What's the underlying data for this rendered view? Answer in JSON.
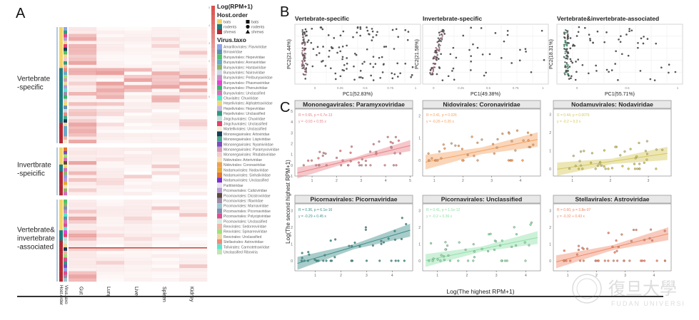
{
  "panels": {
    "a": "A",
    "b": "B",
    "c": "C"
  },
  "chart_data": [
    {
      "type": "heatmap",
      "id": "A",
      "title": "",
      "columns": [
        "Gut",
        "Lung",
        "Liver",
        "Spleen",
        "Kidney"
      ],
      "annotation_columns": [
        "Host.order",
        "Virus.taxo"
      ],
      "row_groups": [
        {
          "label_lines": [
            "Vertebrate",
            "-specific"
          ],
          "rows": 34
        },
        {
          "label_lines": [
            "Invertbrate",
            "-speicific"
          ],
          "rows": 14
        },
        {
          "label_lines": [
            "Vertebrate&",
            "invertebrate",
            "-associated"
          ],
          "rows": 24
        }
      ],
      "color_scale": {
        "title": "Log(RPM+1)",
        "ticks": [
          0,
          1,
          2,
          3,
          4,
          5
        ],
        "low": "#ffffff",
        "high": "#d9534f"
      },
      "legend_host_order": {
        "title": "Host.order",
        "items": [
          {
            "name": "bats",
            "color": "#f2d46b",
            "shape": "square"
          },
          {
            "name": "rodents",
            "color": "#1f7a80",
            "shape": "circle"
          },
          {
            "name": "shrews",
            "color": "#b22b35",
            "shape": "triangle"
          }
        ]
      },
      "legend_virus_taxo": {
        "title": "Virus.taxo",
        "items": [
          {
            "name": "Amarillovirales: Flaviviridae",
            "color": "#8fa4e6"
          },
          {
            "name": "Birnaviridae",
            "color": "#5f8fb0"
          },
          {
            "name": "Bunyavirales: Hepeviridae",
            "color": "#4fc36a"
          },
          {
            "name": "Bunyavirales: Arenaviridae",
            "color": "#6aa9c9"
          },
          {
            "name": "Bunyavirales: Hantaviridae",
            "color": "#8fb56a"
          },
          {
            "name": "Bunyavirales: Nairoviridae",
            "color": "#cfd7e6"
          },
          {
            "name": "Bunyavirales: Peribunyaviridae",
            "color": "#c58fc4"
          },
          {
            "name": "Bunyavirales: Phasmaviridae",
            "color": "#e83fd6"
          },
          {
            "name": "Bunyavirales: Phenuiviridae",
            "color": "#3ab56a"
          },
          {
            "name": "Bunyavirales: Unclassified",
            "color": "#d46fb8"
          },
          {
            "name": "Chuviales: Chuviridae",
            "color": "#52e6c9"
          },
          {
            "name": "Hepelivirales: Alphatetraviridae",
            "color": "#f1d873"
          },
          {
            "name": "Hepelivirales: Hepeviridae",
            "color": "#c9b6e0"
          },
          {
            "name": "Hepelivirales: Unclassified",
            "color": "#2e9b7c"
          },
          {
            "name": "Jingchuvirales: Chuviridae",
            "color": "#bfe0d8"
          },
          {
            "name": "Jingchuvirales: Unclassified",
            "color": "#e6416f"
          },
          {
            "name": "Martellivirales: Unclassified",
            "color": "#f6ecd2"
          },
          {
            "name": "Mononegavirales: Artoviridae",
            "color": "#163d57"
          },
          {
            "name": "Mononegavirales: Lispiviridae",
            "color": "#46a88c"
          },
          {
            "name": "Mononegavirales: Nyamiviridae",
            "color": "#7c4ac2"
          },
          {
            "name": "Mononegavirales: Paramyxoviridae",
            "color": "#d69bb7"
          },
          {
            "name": "Mononegavirales: Rhabdoviridae",
            "color": "#f2c9cf"
          },
          {
            "name": "Nidovirales: Arteriviridae",
            "color": "#f5e2b8"
          },
          {
            "name": "Nidovirales: Coronaviridae",
            "color": "#f0a04b"
          },
          {
            "name": "Nodamuvirales: Nodaviridae",
            "color": "#e6a93a"
          },
          {
            "name": "Nodamuvirales: Sinhaliviridae",
            "color": "#e5762d"
          },
          {
            "name": "Nodamuvirales: Unclassified",
            "color": "#7b2fd0"
          },
          {
            "name": "Partitiviridae",
            "color": "#e9e2f2"
          },
          {
            "name": "Picornavirales: Caliciviridae",
            "color": "#b99ad9"
          },
          {
            "name": "Picornavirales: Dicistroviridae",
            "color": "#5b4a3a"
          },
          {
            "name": "Picornavirales: Iflaviridae",
            "color": "#a08aa6"
          },
          {
            "name": "Picornavirales: Marnaviridae",
            "color": "#9bc7cf"
          },
          {
            "name": "Picornavirales: Picornaviridae",
            "color": "#7f8fb0"
          },
          {
            "name": "Picornavirales: Polycipiviridae",
            "color": "#e04b8c"
          },
          {
            "name": "Picornavirales: Unclassified",
            "color": "#cfeee0"
          },
          {
            "name": "Reovirales: Sedoreoviridae",
            "color": "#f0b6a8"
          },
          {
            "name": "Reovirales: Spinareoviridae",
            "color": "#9fe07a"
          },
          {
            "name": "Reovirales: Unclassified",
            "color": "#eed9a0"
          },
          {
            "name": "Stellavirales: Astroviridae",
            "color": "#f08a7a"
          },
          {
            "name": "Tolivirales: Carmotetraviridae",
            "color": "#5de6cf"
          },
          {
            "name": "Unclassified Riboviria",
            "color": "#bfe6b0"
          }
        ]
      }
    },
    {
      "type": "scatter",
      "id": "B1",
      "title": "Vertebrate-specific",
      "xlabel": "PC1(52.83%)",
      "ylabel": "PC2(21.44%)",
      "xlim": [
        -0.2,
        1.05
      ],
      "ylim": [
        -0.4,
        0.35
      ],
      "xticks": [
        0,
        0.25,
        0.5,
        0.75,
        1.0
      ],
      "grid": true
    },
    {
      "type": "scatter",
      "id": "B2",
      "title": "Invertebrate-specific",
      "xlabel": "PC1(49.38%)",
      "ylabel": "PC2(21.58%)",
      "xlim": [
        -0.1,
        1.05
      ],
      "ylim": [
        -0.5,
        0.35
      ],
      "xticks": [
        0.0,
        0.25,
        0.5,
        0.75,
        1.0
      ],
      "grid": true
    },
    {
      "type": "scatter",
      "id": "B3",
      "title": "Vertebrate&invertebrate-associated",
      "xlabel": "PC1(55.71%)",
      "ylabel": "PC2(18.31%)",
      "xlim": [
        -0.2,
        1.05
      ],
      "ylim": [
        -0.5,
        0.35
      ],
      "xticks": [
        0,
        0.5,
        1.0
      ],
      "grid": true
    },
    {
      "type": "scatter",
      "id": "C-facets",
      "xlabel": "Log(The highest RPM+1)",
      "ylabel": "Log(The second highest RPM+1)",
      "facets": [
        {
          "title": "Mononegavirales: Paramyxoviridae",
          "color": "#e8838a",
          "stat": "R = 0.65, p = 6.7e-13",
          "eq": "y = -0.93 + 0.55 x",
          "xlim": [
            0.3,
            5.1
          ],
          "ylim": [
            -1,
            5.2
          ],
          "xticks": [
            1,
            2,
            3,
            4,
            5
          ],
          "yticks": [
            -1,
            0,
            1,
            2,
            3,
            4,
            5
          ],
          "slope": 0.55,
          "intercept": -0.93
        },
        {
          "title": "Nidovirales: Coronaviridae",
          "color": "#f4a261",
          "stat": "R = 0.41, p = 0.026",
          "eq": "y = -0.26 + 0.26 x",
          "xlim": [
            0.6,
            4.7
          ],
          "ylim": [
            -0.7,
            2.3
          ],
          "xticks": [
            1,
            2,
            3,
            4
          ],
          "yticks": [
            0,
            1,
            2
          ],
          "slope": 0.26,
          "intercept": -0.26
        },
        {
          "title": "Nodamuvirales: Nodaviridae",
          "color": "#d4c85a",
          "stat": "R = 0.44, p = 0.0076",
          "eq": "y = -0.2 + 0.3 x",
          "xlim": [
            0.5,
            3.6
          ],
          "ylim": [
            -0.4,
            3.3
          ],
          "xticks": [
            1,
            2,
            3
          ],
          "yticks": [
            0,
            1,
            2,
            3
          ],
          "slope": 0.3,
          "intercept": -0.2
        },
        {
          "title": "Picornavirales: Picornaviridae",
          "color": "#3f8f8a",
          "stat": "R = 0.36, p = 6.1e-16",
          "eq": "y = -0.29 + 0.45 x",
          "xlim": [
            0.2,
            4.8
          ],
          "ylim": [
            -0.6,
            3.4
          ],
          "xticks": [
            1,
            2,
            3,
            4
          ],
          "yticks": [
            0,
            1,
            2,
            3
          ],
          "slope": 0.45,
          "intercept": -0.29
        },
        {
          "title": "Picornavirales: Unclassified",
          "color": "#8fe0a8",
          "stat": "R = 0.41, p = 1.1e-12",
          "eq": "y = -0.2 + 0.36 x",
          "xlim": [
            0.5,
            4.5
          ],
          "ylim": [
            -0.6,
            3.4
          ],
          "xticks": [
            1,
            2,
            3,
            4
          ],
          "yticks": [
            0,
            1,
            2,
            3
          ],
          "slope": 0.36,
          "intercept": -0.2
        },
        {
          "title": "Stellavirales: Astroviridae",
          "color": "#f08a6a",
          "stat": "R = 0.60, p = 3.8e-07",
          "eq": "y = -0.32 + 0.43 x",
          "xlim": [
            0.5,
            4.6
          ],
          "ylim": [
            -0.6,
            3.4
          ],
          "xticks": [
            1,
            2,
            3,
            4
          ],
          "yticks": [
            0,
            1,
            2,
            3
          ],
          "slope": 0.43,
          "intercept": -0.32
        }
      ]
    }
  ],
  "watermark": {
    "text_cn": "復旦大學",
    "text_en": "FUDAN UNIVERSITY"
  }
}
